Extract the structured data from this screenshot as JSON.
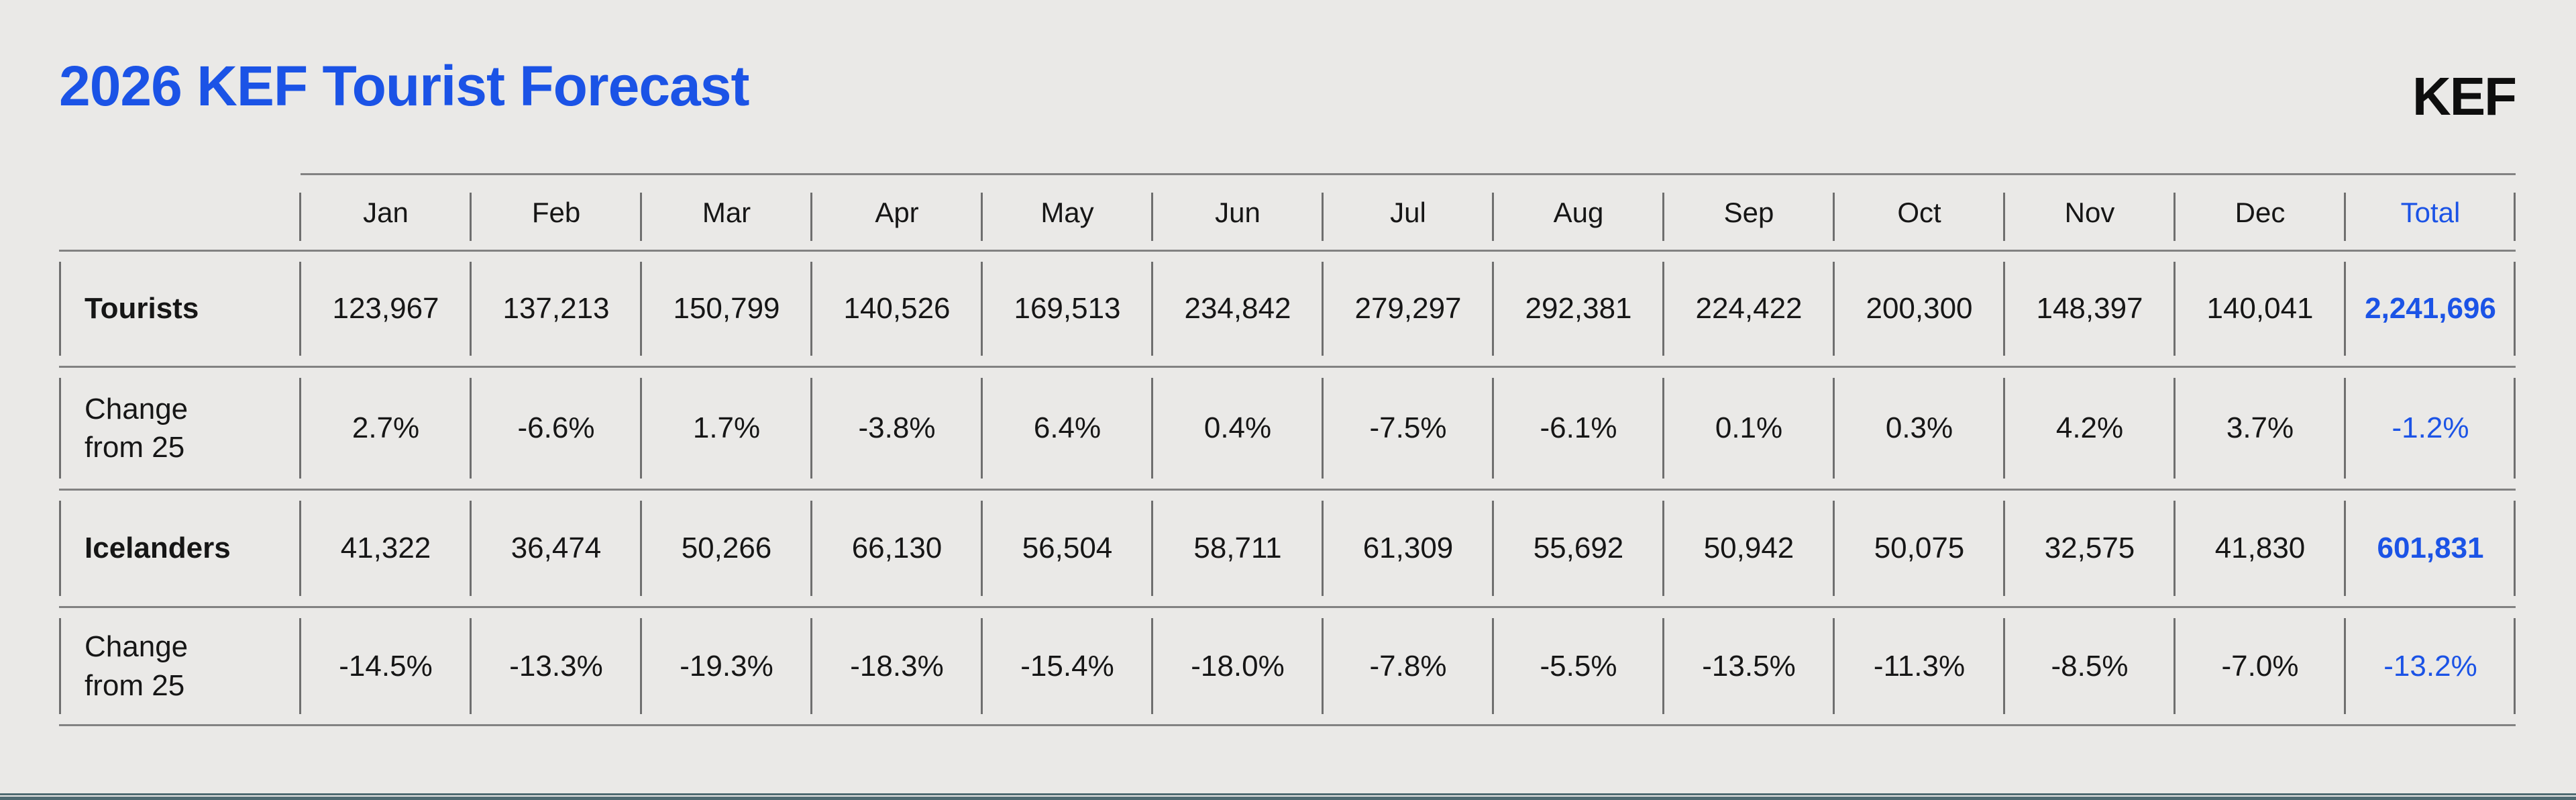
{
  "header": {
    "title": "2026 KEF Tourist Forecast",
    "logo": "KEF"
  },
  "colors": {
    "accent_blue": "#1B53E6",
    "background": "#EAE9E7",
    "text": "#161616",
    "grid_line": "#828282",
    "bottom_bar_teal": "#4E6A71"
  },
  "table": {
    "columns": [
      "Jan",
      "Feb",
      "Mar",
      "Apr",
      "May",
      "Jun",
      "Jul",
      "Aug",
      "Sep",
      "Oct",
      "Nov",
      "Dec",
      "Total"
    ],
    "rows": [
      {
        "name": "tourists",
        "label": "Tourists",
        "emphasis": true,
        "values": [
          "123,967",
          "137,213",
          "150,799",
          "140,526",
          "169,513",
          "234,842",
          "279,297",
          "292,381",
          "224,422",
          "200,300",
          "148,397",
          "140,041"
        ],
        "total": "2,241,696",
        "total_bold": true
      },
      {
        "name": "tourists-change",
        "label": "Change from 25",
        "emphasis": false,
        "values": [
          "2.7%",
          "-6.6%",
          "1.7%",
          "-3.8%",
          "6.4%",
          "0.4%",
          "-7.5%",
          "-6.1%",
          "0.1%",
          "0.3%",
          "4.2%",
          "3.7%"
        ],
        "total": "-1.2%",
        "total_bold": false
      },
      {
        "name": "icelanders",
        "label": "Icelanders",
        "emphasis": true,
        "values": [
          "41,322",
          "36,474",
          "50,266",
          "66,130",
          "56,504",
          "58,711",
          "61,309",
          "55,692",
          "50,942",
          "50,075",
          "32,575",
          "41,830"
        ],
        "total": "601,831",
        "total_bold": true
      },
      {
        "name": "icelanders-change",
        "label": "Change from 25",
        "emphasis": false,
        "values": [
          "-14.5%",
          "-13.3%",
          "-19.3%",
          "-18.3%",
          "-15.4%",
          "-18.0%",
          "-7.8%",
          "-5.5%",
          "-13.5%",
          "-11.3%",
          "-8.5%",
          "-7.0%"
        ],
        "total": "-13.2%",
        "total_bold": false
      }
    ]
  },
  "chart_data": {
    "type": "table",
    "title": "2026 KEF Tourist Forecast",
    "categories": [
      "Jan",
      "Feb",
      "Mar",
      "Apr",
      "May",
      "Jun",
      "Jul",
      "Aug",
      "Sep",
      "Oct",
      "Nov",
      "Dec"
    ],
    "series": [
      {
        "name": "Tourists",
        "values": [
          123967,
          137213,
          150799,
          140526,
          169513,
          234842,
          279297,
          292381,
          224422,
          200300,
          148397,
          140041
        ],
        "total": 2241696
      },
      {
        "name": "Tourists change from 25 (%)",
        "values": [
          2.7,
          -6.6,
          1.7,
          -3.8,
          6.4,
          0.4,
          -7.5,
          -6.1,
          0.1,
          0.3,
          4.2,
          3.7
        ],
        "total": -1.2
      },
      {
        "name": "Icelanders",
        "values": [
          41322,
          36474,
          50266,
          66130,
          56504,
          58711,
          61309,
          55692,
          50942,
          50075,
          32575,
          41830
        ],
        "total": 601831
      },
      {
        "name": "Icelanders change from 25 (%)",
        "values": [
          -14.5,
          -13.3,
          -19.3,
          -18.3,
          -15.4,
          -18.0,
          -7.8,
          -5.5,
          -13.5,
          -11.3,
          -8.5,
          -7.0
        ],
        "total": -13.2
      }
    ]
  }
}
